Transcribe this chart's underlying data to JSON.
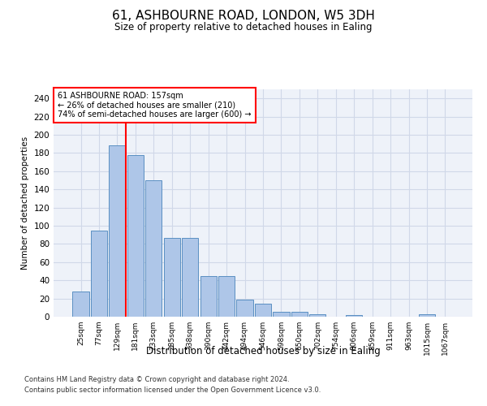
{
  "title": "61, ASHBOURNE ROAD, LONDON, W5 3DH",
  "subtitle": "Size of property relative to detached houses in Ealing",
  "xlabel": "Distribution of detached houses by size in Ealing",
  "ylabel": "Number of detached properties",
  "bar_labels": [
    "25sqm",
    "77sqm",
    "129sqm",
    "181sqm",
    "233sqm",
    "285sqm",
    "338sqm",
    "390sqm",
    "442sqm",
    "494sqm",
    "546sqm",
    "598sqm",
    "650sqm",
    "702sqm",
    "754sqm",
    "806sqm",
    "859sqm",
    "911sqm",
    "963sqm",
    "1015sqm",
    "1067sqm"
  ],
  "bar_values": [
    28,
    95,
    188,
    178,
    150,
    87,
    87,
    45,
    45,
    19,
    14,
    5,
    5,
    3,
    0,
    2,
    0,
    0,
    0,
    3,
    0
  ],
  "bar_color": "#aec6e8",
  "bar_edge_color": "#5a8fc2",
  "grid_color": "#d0d8e8",
  "background_color": "#eef2f9",
  "vline_color": "red",
  "annotation_text": "61 ASHBOURNE ROAD: 157sqm\n← 26% of detached houses are smaller (210)\n74% of semi-detached houses are larger (600) →",
  "annotation_box_color": "white",
  "annotation_box_edge": "red",
  "ylim": [
    0,
    250
  ],
  "yticks": [
    0,
    20,
    40,
    60,
    80,
    100,
    120,
    140,
    160,
    180,
    200,
    220,
    240
  ],
  "footer1": "Contains HM Land Registry data © Crown copyright and database right 2024.",
  "footer2": "Contains public sector information licensed under the Open Government Licence v3.0."
}
